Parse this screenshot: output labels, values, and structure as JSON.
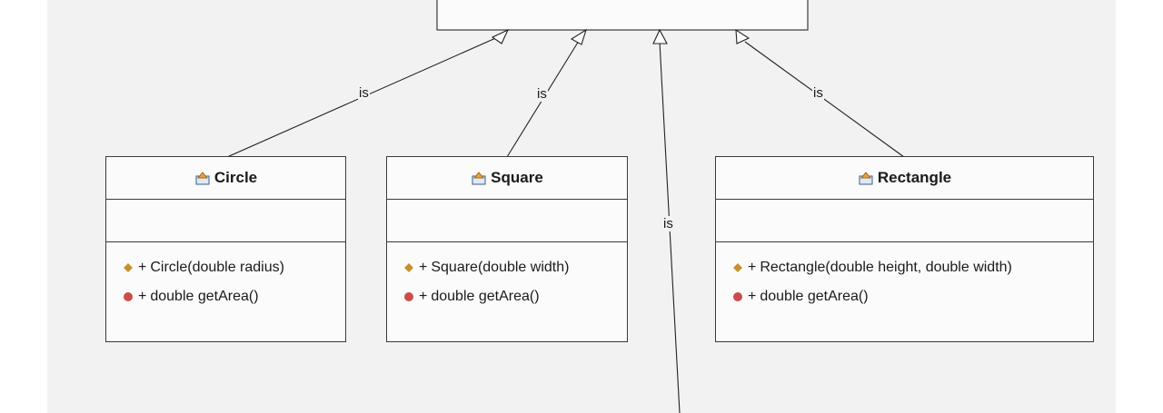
{
  "classes": [
    {
      "name": "Circle",
      "operations": [
        {
          "kind": "constructor",
          "visibility": "+",
          "signature": "Circle(double radius)"
        },
        {
          "kind": "method",
          "visibility": "+",
          "signature": "double getArea()"
        }
      ]
    },
    {
      "name": "Square",
      "operations": [
        {
          "kind": "constructor",
          "visibility": "+",
          "signature": "Square(double width)"
        },
        {
          "kind": "method",
          "visibility": "+",
          "signature": "double getArea()"
        }
      ]
    },
    {
      "name": "Rectangle",
      "operations": [
        {
          "kind": "constructor",
          "visibility": "+",
          "signature": "Rectangle(double height, double width)"
        },
        {
          "kind": "method",
          "visibility": "+",
          "signature": "double getArea()"
        }
      ]
    }
  ],
  "relations": {
    "circle": "is",
    "square": "is",
    "rectangle": "is",
    "hidden_subclass": "is"
  },
  "colors": {
    "constructor_icon": "#c8902a",
    "method_icon": "#cc4b4b"
  }
}
